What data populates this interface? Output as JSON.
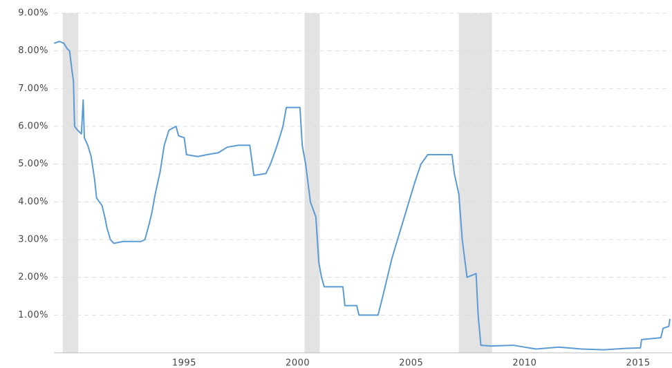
{
  "chart_data": {
    "type": "line",
    "x": [
      1989.27,
      1989.5,
      1989.7,
      1989.85,
      1989.95,
      1990.05,
      1990.12,
      1990.17,
      1990.3,
      1990.47,
      1990.55,
      1990.6,
      1990.75,
      1990.9,
      1991.05,
      1991.14,
      1991.38,
      1991.5,
      1991.6,
      1991.75,
      1991.9,
      1992.3,
      1992.7,
      1993.1,
      1993.27,
      1993.45,
      1993.57,
      1993.72,
      1993.94,
      1994.12,
      1994.33,
      1994.64,
      1994.75,
      1995.0,
      1995.1,
      1995.6,
      1996.0,
      1996.5,
      1996.9,
      1997.4,
      1997.89,
      1998.07,
      1998.6,
      1998.8,
      1998.95,
      1999.04,
      1999.2,
      1999.35,
      1999.5,
      2000.1,
      2000.2,
      2000.35,
      2000.56,
      2000.8,
      2000.93,
      2001.05,
      2001.17,
      2001.99,
      2002.08,
      2002.6,
      2002.7,
      2003.54,
      2003.75,
      2003.95,
      2004.15,
      2004.4,
      2004.65,
      2004.9,
      2005.15,
      2005.43,
      2005.73,
      2006.8,
      2006.9,
      2007.1,
      2007.25,
      2007.46,
      2007.86,
      2007.95,
      2008.07,
      2008.5,
      2009.5,
      2010.5,
      2011.5,
      2012.5,
      2013.5,
      2014.5,
      2015.1,
      2015.15,
      2016.0,
      2016.1,
      2016.35,
      2016.4
    ],
    "values": [
      8.2,
      8.25,
      8.2,
      8.05,
      8.0,
      7.5,
      7.2,
      6.0,
      5.9,
      5.8,
      6.7,
      5.7,
      5.5,
      5.2,
      4.6,
      4.1,
      3.9,
      3.6,
      3.3,
      3.0,
      2.9,
      2.95,
      2.95,
      2.95,
      3.0,
      3.4,
      3.7,
      4.2,
      4.8,
      5.5,
      5.9,
      6.0,
      5.75,
      5.7,
      5.25,
      5.2,
      5.25,
      5.3,
      5.45,
      5.5,
      5.5,
      4.7,
      4.75,
      5.0,
      5.25,
      5.4,
      5.7,
      6.0,
      6.5,
      6.5,
      5.5,
      5.0,
      4.0,
      3.6,
      2.4,
      2.0,
      1.75,
      1.75,
      1.25,
      1.25,
      1.0,
      1.0,
      1.5,
      2.0,
      2.5,
      3.0,
      3.5,
      4.0,
      4.5,
      5.0,
      5.25,
      5.25,
      4.75,
      4.2,
      3.0,
      2.0,
      2.1,
      1.0,
      0.2,
      0.18,
      0.2,
      0.1,
      0.15,
      0.1,
      0.08,
      0.12,
      0.13,
      0.35,
      0.4,
      0.65,
      0.7,
      0.9
    ],
    "color": "#5b9bd5",
    "recessions": [
      [
        1989.65,
        1990.33
      ],
      [
        2000.3,
        2000.97
      ],
      [
        2007.1,
        2008.56
      ]
    ],
    "recession_color": "#e3e3e3",
    "xlim": [
      1989.26,
      2016.43
    ],
    "xticks": [
      1995,
      2000,
      2005,
      2010,
      2015
    ],
    "ylim": [
      0,
      9
    ],
    "yticks": [
      {
        "value": 1,
        "label": "1.00%"
      },
      {
        "value": 2,
        "label": "2.00%"
      },
      {
        "value": 3,
        "label": "3.00%"
      },
      {
        "value": 4,
        "label": "4.00%"
      },
      {
        "value": 5,
        "label": "5.00%"
      },
      {
        "value": 6,
        "label": "6.00%"
      },
      {
        "value": 7,
        "label": "7.00%"
      },
      {
        "value": 8,
        "label": "8.00%"
      },
      {
        "value": 9,
        "label": "9.00%"
      }
    ],
    "grid": true
  }
}
